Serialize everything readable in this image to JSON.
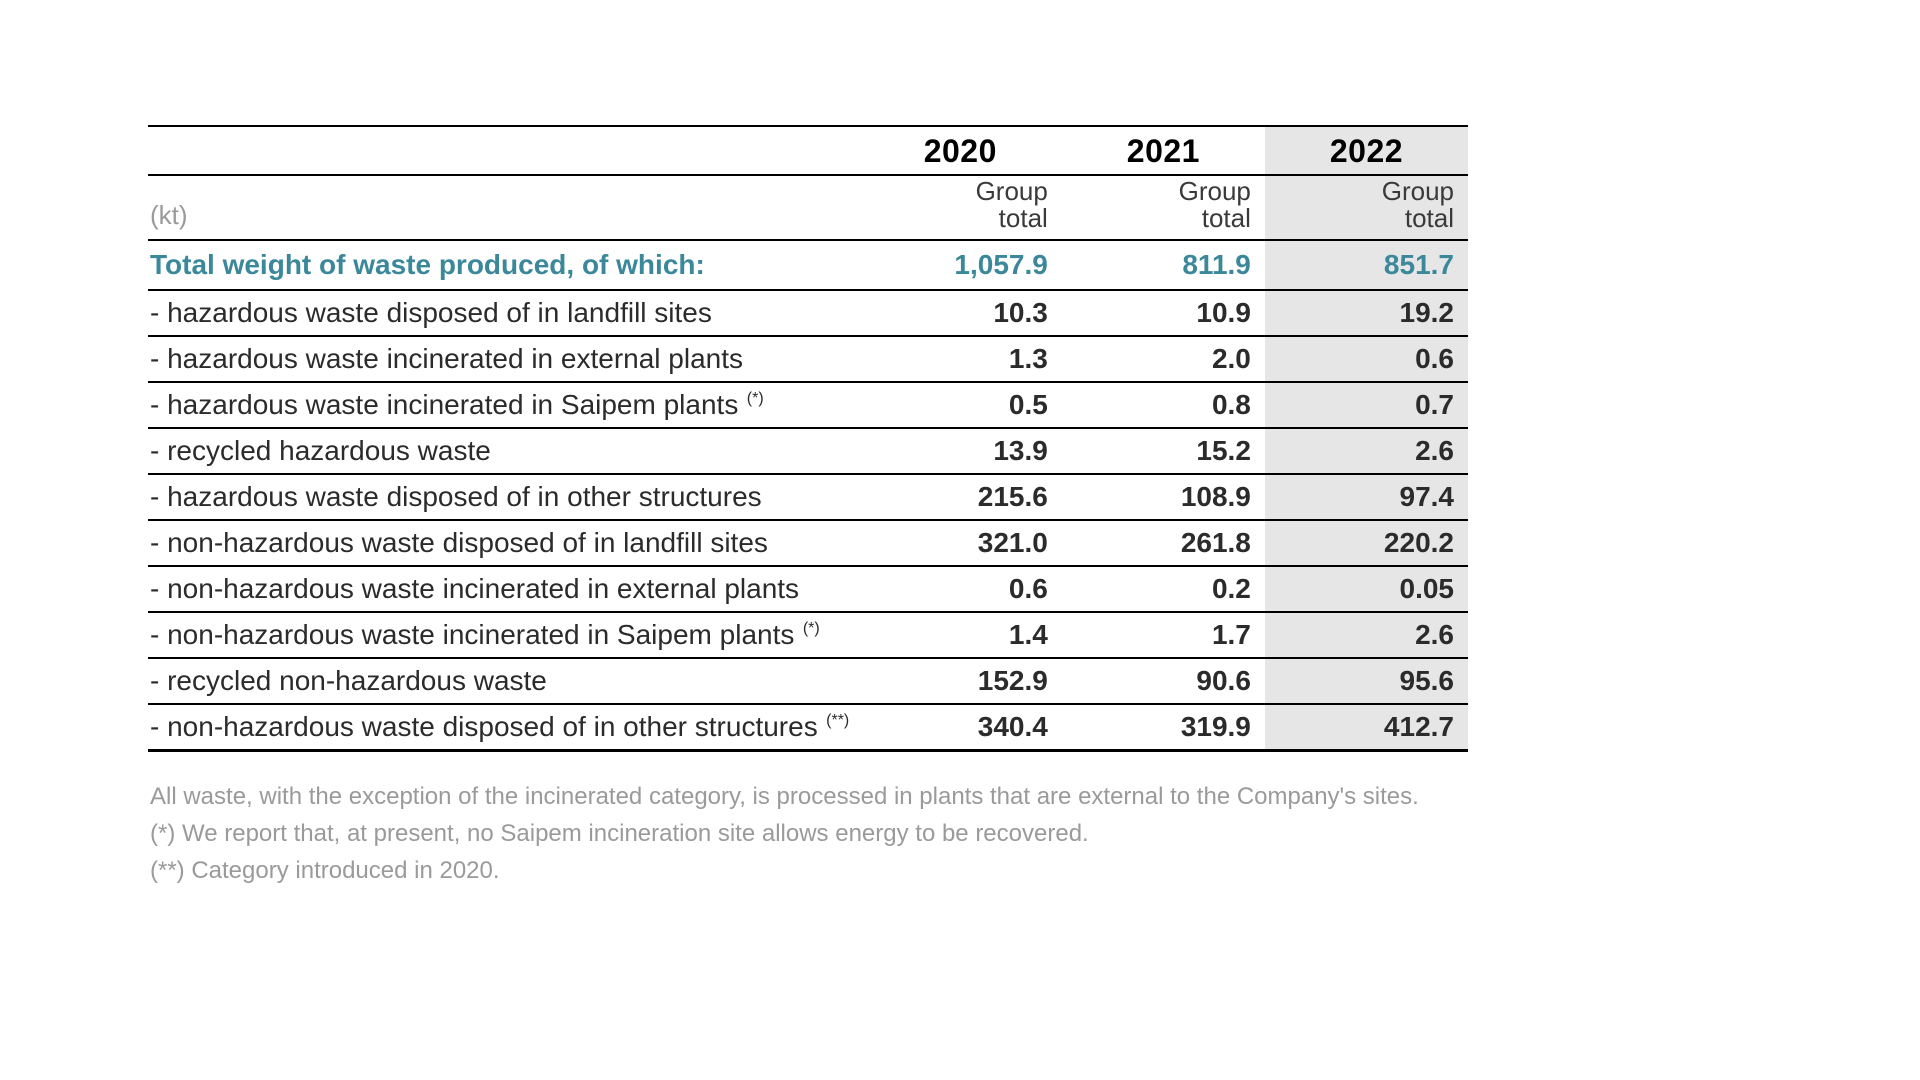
{
  "colors": {
    "background": "#ffffff",
    "text": "#2b2b2b",
    "muted": "#9a9a9a",
    "accent": "#3a889a",
    "rule": "#000000",
    "highlight_bg": "#e6e6e6"
  },
  "typography": {
    "family": "Arial Narrow / condensed sans-serif",
    "year_header_pt": 32,
    "subheader_pt": 26,
    "row_pt": 28,
    "footnote_pt": 24,
    "numeric_weight": 700
  },
  "table": {
    "unit_label": "(kt)",
    "group_total_label_line1": "Group",
    "group_total_label_line2": "total",
    "years": [
      "2020",
      "2021",
      "2022"
    ],
    "highlight_year_index": 2,
    "total_row": {
      "label": "Total weight of waste produced, of which:",
      "values": [
        "1,057.9",
        "811.9",
        "851.7"
      ]
    },
    "rows": [
      {
        "label": "- hazardous waste disposed of in landfill sites",
        "values": [
          "10.3",
          "10.9",
          "19.2"
        ]
      },
      {
        "label": "- hazardous waste incinerated in external plants",
        "values": [
          "1.3",
          "2.0",
          "0.6"
        ]
      },
      {
        "label": "- hazardous waste incinerated in Saipem plants",
        "note": "(*)",
        "values": [
          "0.5",
          "0.8",
          "0.7"
        ]
      },
      {
        "label": "- recycled hazardous waste",
        "values": [
          "13.9",
          "15.2",
          "2.6"
        ]
      },
      {
        "label": "- hazardous waste disposed of in other structures",
        "values": [
          "215.6",
          "108.9",
          "97.4"
        ]
      },
      {
        "label": "- non-hazardous waste disposed of in landfill sites",
        "values": [
          "321.0",
          "261.8",
          "220.2"
        ]
      },
      {
        "label": "- non-hazardous waste incinerated in external plants",
        "values": [
          "0.6",
          "0.2",
          "0.05"
        ]
      },
      {
        "label": "- non-hazardous waste incinerated in Saipem plants",
        "note": "(*)",
        "values": [
          "1.4",
          "1.7",
          "2.6"
        ]
      },
      {
        "label": "- recycled non-hazardous waste",
        "values": [
          "152.9",
          "90.6",
          "95.6"
        ]
      },
      {
        "label": "- non-hazardous waste disposed of in other structures",
        "note": "(**)",
        "values": [
          "340.4",
          "319.9",
          "412.7"
        ]
      }
    ]
  },
  "footnotes": {
    "line1": "All waste, with the exception of the incinerated category, is processed in plants that are external to the Company's sites.",
    "line2": "(*) We report that, at present, no Saipem incineration site allows energy to be recovered.",
    "line3": "(**) Category introduced in 2020."
  }
}
